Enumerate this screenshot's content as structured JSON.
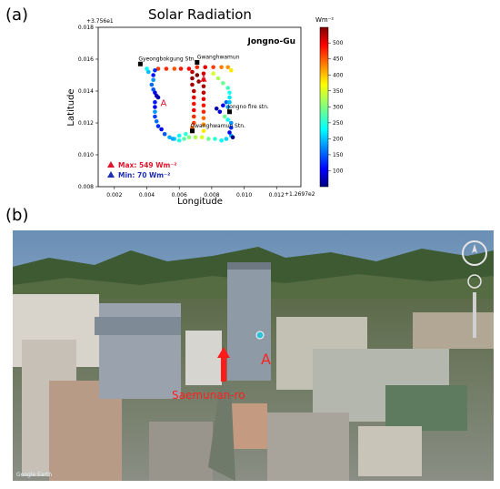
{
  "panels": {
    "a_label": "(a)",
    "b_label": "(b)"
  },
  "chart_data": {
    "type": "scatter",
    "title": "Solar Radiation",
    "xlabel": "Longitude",
    "ylabel": "Latitude",
    "xlim": [
      0.001,
      0.0135
    ],
    "ylim": [
      0.008,
      0.018
    ],
    "x_ticks": [
      "0.002",
      "0.004",
      "0.006",
      "0.008",
      "0.010",
      "0.012"
    ],
    "y_ticks": [
      "0.008",
      "0.010",
      "0.012",
      "0.014",
      "0.016",
      "0.018"
    ],
    "x_ticks_values": [
      0.002,
      0.004,
      0.006,
      0.008,
      0.01,
      0.012
    ],
    "y_ticks_values": [
      0.008,
      0.01,
      0.012,
      0.014,
      0.016,
      0.018
    ],
    "x_offset_label": "+1.2697e2",
    "y_offset_label": "+3.756e1",
    "area_label": "Jongno-Gu",
    "colorbar": {
      "label": "Wm⁻²",
      "min": 70,
      "max": 549,
      "ticks": [
        "500",
        "450",
        "400",
        "350",
        "300",
        "250",
        "200",
        "150",
        "100"
      ],
      "tick_values": [
        500,
        450,
        400,
        350,
        300,
        250,
        200,
        150,
        100
      ]
    },
    "stations": [
      {
        "name": "Gyeongbokgung Stn.",
        "x": 0.0036,
        "y": 0.0157
      },
      {
        "name": "Gwanghwamun",
        "x": 0.0071,
        "y": 0.0158
      },
      {
        "name": "Jongno fire stn.",
        "x": 0.0091,
        "y": 0.0127
      },
      {
        "name": "Gwanghwamun Stn.",
        "x": 0.0068,
        "y": 0.0115
      }
    ],
    "marker_a": {
      "label": "A",
      "x": 0.0045,
      "y": 0.0133
    },
    "marker_a2": {
      "label": "A",
      "x": 0.0072,
      "y": 0.0148
    },
    "legend": [
      {
        "label": "Max: 549 Wm⁻²",
        "color": "#e0142c"
      },
      {
        "label": "Min:  70 Wm⁻²",
        "color": "#1e2fb4"
      }
    ],
    "series": [
      {
        "values": [
          [
            0.0047,
            0.0154,
            460
          ],
          [
            0.0052,
            0.0154,
            470
          ],
          [
            0.0057,
            0.0154,
            450
          ],
          [
            0.0061,
            0.0154,
            480
          ],
          [
            0.0066,
            0.0154,
            490
          ],
          [
            0.0071,
            0.0155,
            470
          ],
          [
            0.0076,
            0.0155,
            500
          ],
          [
            0.0081,
            0.0155,
            460
          ],
          [
            0.0086,
            0.0155,
            430
          ],
          [
            0.009,
            0.0155,
            420
          ],
          [
            0.0092,
            0.0153,
            380
          ],
          [
            0.0045,
            0.0153,
            150
          ],
          [
            0.0044,
            0.015,
            140
          ],
          [
            0.0044,
            0.0147,
            200
          ],
          [
            0.0043,
            0.0144,
            180
          ],
          [
            0.0044,
            0.0141,
            170
          ],
          [
            0.0045,
            0.0139,
            120
          ],
          [
            0.0046,
            0.0137,
            100
          ],
          [
            0.0047,
            0.0136,
            90
          ],
          [
            0.004,
            0.0154,
            250
          ],
          [
            0.0041,
            0.0152,
            220
          ],
          [
            0.0045,
            0.0133,
            140
          ],
          [
            0.0045,
            0.013,
            120
          ],
          [
            0.0045,
            0.0127,
            200
          ],
          [
            0.0045,
            0.0124,
            160
          ],
          [
            0.0046,
            0.0121,
            180
          ],
          [
            0.0047,
            0.0118,
            150
          ],
          [
            0.0049,
            0.0116,
            130
          ],
          [
            0.0051,
            0.0113,
            170
          ],
          [
            0.0054,
            0.0111,
            210
          ],
          [
            0.0057,
            0.011,
            230
          ],
          [
            0.006,
            0.0109,
            260
          ],
          [
            0.0063,
            0.011,
            290
          ],
          [
            0.0066,
            0.0111,
            310
          ],
          [
            0.007,
            0.0111,
            330
          ],
          [
            0.0074,
            0.0111,
            350
          ],
          [
            0.0078,
            0.011,
            300
          ],
          [
            0.0082,
            0.011,
            270
          ],
          [
            0.0086,
            0.0109,
            250
          ],
          [
            0.0089,
            0.011,
            230
          ],
          [
            0.0092,
            0.0112,
            210
          ],
          [
            0.0068,
            0.0152,
            520
          ],
          [
            0.0068,
            0.0148,
            540
          ],
          [
            0.0068,
            0.0144,
            530
          ],
          [
            0.0069,
            0.014,
            520
          ],
          [
            0.0069,
            0.0136,
            500
          ],
          [
            0.0069,
            0.0132,
            480
          ],
          [
            0.0069,
            0.0128,
            490
          ],
          [
            0.0069,
            0.0124,
            470
          ],
          [
            0.0069,
            0.012,
            460
          ],
          [
            0.0068,
            0.0117,
            440
          ],
          [
            0.0075,
            0.0151,
            510
          ],
          [
            0.0075,
            0.0147,
            500
          ],
          [
            0.0075,
            0.0143,
            530
          ],
          [
            0.0075,
            0.0139,
            520
          ],
          [
            0.0075,
            0.0135,
            500
          ],
          [
            0.0075,
            0.0131,
            480
          ],
          [
            0.0075,
            0.0127,
            470
          ],
          [
            0.0075,
            0.0123,
            440
          ],
          [
            0.0075,
            0.0119,
            420
          ],
          [
            0.0075,
            0.0115,
            380
          ],
          [
            0.0071,
            0.015,
            549
          ],
          [
            0.0072,
            0.0146,
            540
          ],
          [
            0.0088,
            0.0124,
            300
          ],
          [
            0.009,
            0.0122,
            250
          ],
          [
            0.0092,
            0.012,
            200
          ],
          [
            0.0092,
            0.0117,
            150
          ],
          [
            0.0091,
            0.0114,
            120
          ],
          [
            0.0093,
            0.0111,
            70
          ],
          [
            0.0083,
            0.0129,
            90
          ],
          [
            0.0085,
            0.0127,
            110
          ],
          [
            0.0087,
            0.0131,
            130
          ],
          [
            0.0089,
            0.0133,
            180
          ],
          [
            0.0081,
            0.0151,
            350
          ],
          [
            0.0084,
            0.0148,
            330
          ],
          [
            0.0087,
            0.0145,
            300
          ],
          [
            0.009,
            0.0142,
            280
          ],
          [
            0.0091,
            0.0139,
            260
          ],
          [
            0.0091,
            0.0136,
            240
          ],
          [
            0.0091,
            0.0133,
            220
          ],
          [
            0.009,
            0.013,
            200
          ],
          [
            0.0056,
            0.011,
            210
          ],
          [
            0.006,
            0.0112,
            250
          ],
          [
            0.0064,
            0.0113,
            270
          ]
        ]
      }
    ]
  },
  "photo": {
    "location_label": "Saemunan-ro",
    "marker_label": "A",
    "watermark": "Google Earth"
  }
}
